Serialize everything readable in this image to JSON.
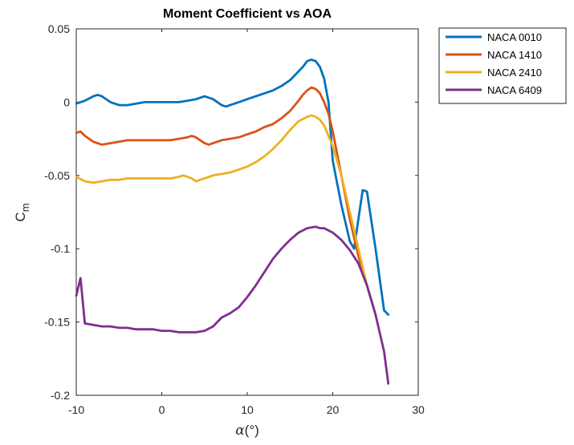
{
  "chart_data": {
    "type": "line",
    "title": "Moment Coefficient vs AOA",
    "xlabel_symbol": "α",
    "xlabel_unit": "(°)",
    "ylabel_main": "C",
    "ylabel_sub": "m",
    "xlim": [
      -10,
      30
    ],
    "ylim": [
      -0.2,
      0.05
    ],
    "x_ticks": [
      -10,
      0,
      10,
      20,
      30
    ],
    "x_tick_labels": [
      "-10",
      "0",
      "10",
      "20",
      "30"
    ],
    "y_ticks": [
      0.05,
      0,
      -0.05,
      -0.1,
      -0.15,
      -0.2
    ],
    "y_tick_labels": [
      "0.05",
      "0",
      "-0.05",
      "-0.1",
      "-0.15",
      "-0.2"
    ],
    "grid": false,
    "legend_position": "outside-top-right",
    "series": [
      {
        "name": "NACA 0010",
        "color": "#0072BD",
        "x": [
          -10,
          -9,
          -8,
          -7.5,
          -7,
          -6,
          -5,
          -4,
          -3,
          -2,
          -1,
          0,
          1,
          2,
          3,
          4,
          5,
          6,
          7,
          7.5,
          8,
          9,
          10,
          11,
          12,
          13,
          14,
          15,
          16,
          16.5,
          17,
          17.5,
          18,
          18.5,
          19,
          19.5,
          20,
          21,
          22,
          22.5,
          23,
          23.5,
          24,
          25,
          26,
          26.5
        ],
        "y": [
          -0.001,
          0.001,
          0.004,
          0.005,
          0.004,
          0.0,
          -0.002,
          -0.002,
          -0.001,
          0.0,
          0.0,
          0.0,
          0.0,
          0.0,
          0.001,
          0.002,
          0.004,
          0.002,
          -0.002,
          -0.003,
          -0.002,
          0.0,
          0.002,
          0.004,
          0.006,
          0.008,
          0.011,
          0.015,
          0.021,
          0.024,
          0.028,
          0.029,
          0.028,
          0.024,
          0.016,
          0.0,
          -0.04,
          -0.07,
          -0.095,
          -0.1,
          -0.08,
          -0.06,
          -0.061,
          -0.1,
          -0.142,
          -0.145
        ]
      },
      {
        "name": "NACA 1410",
        "color": "#D95319",
        "x": [
          -10,
          -9.5,
          -9,
          -8,
          -7,
          -6,
          -5,
          -4,
          -3,
          -2,
          -1,
          0,
          1,
          2,
          3,
          3.5,
          4,
          5,
          5.5,
          6,
          7,
          8,
          9,
          10,
          11,
          12,
          13,
          14,
          15,
          16,
          16.5,
          17,
          17.5,
          18,
          18.5,
          19,
          19.5,
          20,
          21,
          22,
          23,
          24,
          25
        ],
        "y": [
          -0.021,
          -0.02,
          -0.023,
          -0.027,
          -0.029,
          -0.028,
          -0.027,
          -0.026,
          -0.026,
          -0.026,
          -0.026,
          -0.026,
          -0.026,
          -0.025,
          -0.024,
          -0.023,
          -0.024,
          -0.028,
          -0.029,
          -0.028,
          -0.026,
          -0.025,
          -0.024,
          -0.022,
          -0.02,
          -0.017,
          -0.015,
          -0.011,
          -0.006,
          0.001,
          0.005,
          0.008,
          0.01,
          0.009,
          0.006,
          0.0,
          -0.008,
          -0.02,
          -0.05,
          -0.08,
          -0.105,
          -0.125,
          -0.145
        ]
      },
      {
        "name": "NACA 2410",
        "color": "#EDB120",
        "x": [
          -10,
          -9,
          -8,
          -7,
          -6,
          -5,
          -4,
          -3,
          -2,
          -1,
          0,
          1,
          2,
          2.5,
          3,
          3.5,
          4,
          5,
          6,
          7,
          8,
          9,
          10,
          11,
          12,
          13,
          14,
          15,
          16,
          17,
          17.5,
          18,
          18.5,
          19,
          20,
          21,
          22,
          23,
          24,
          24.5
        ],
        "y": [
          -0.051,
          -0.054,
          -0.055,
          -0.054,
          -0.053,
          -0.053,
          -0.052,
          -0.052,
          -0.052,
          -0.052,
          -0.052,
          -0.052,
          -0.051,
          -0.05,
          -0.051,
          -0.052,
          -0.054,
          -0.052,
          -0.05,
          -0.049,
          -0.048,
          -0.046,
          -0.044,
          -0.041,
          -0.037,
          -0.032,
          -0.026,
          -0.019,
          -0.013,
          -0.01,
          -0.009,
          -0.01,
          -0.012,
          -0.016,
          -0.03,
          -0.05,
          -0.075,
          -0.1,
          -0.125,
          -0.135
        ]
      },
      {
        "name": "NACA 6409",
        "color": "#7E2F8E",
        "x": [
          -10,
          -9.5,
          -9,
          -8,
          -7,
          -6,
          -5,
          -4,
          -3,
          -2,
          -1,
          0,
          1,
          2,
          3,
          4,
          5,
          6,
          7,
          8,
          9,
          10,
          11,
          12,
          13,
          14,
          15,
          16,
          17,
          18,
          18.5,
          19,
          20,
          21,
          22,
          23,
          24,
          25,
          26,
          26.5
        ],
        "y": [
          -0.132,
          -0.12,
          -0.151,
          -0.152,
          -0.153,
          -0.153,
          -0.154,
          -0.154,
          -0.155,
          -0.155,
          -0.155,
          -0.156,
          -0.156,
          -0.157,
          -0.157,
          -0.157,
          -0.156,
          -0.153,
          -0.147,
          -0.144,
          -0.14,
          -0.133,
          -0.125,
          -0.116,
          -0.107,
          -0.1,
          -0.094,
          -0.089,
          -0.086,
          -0.085,
          -0.086,
          -0.086,
          -0.089,
          -0.094,
          -0.101,
          -0.11,
          -0.125,
          -0.145,
          -0.17,
          -0.192
        ]
      }
    ]
  }
}
